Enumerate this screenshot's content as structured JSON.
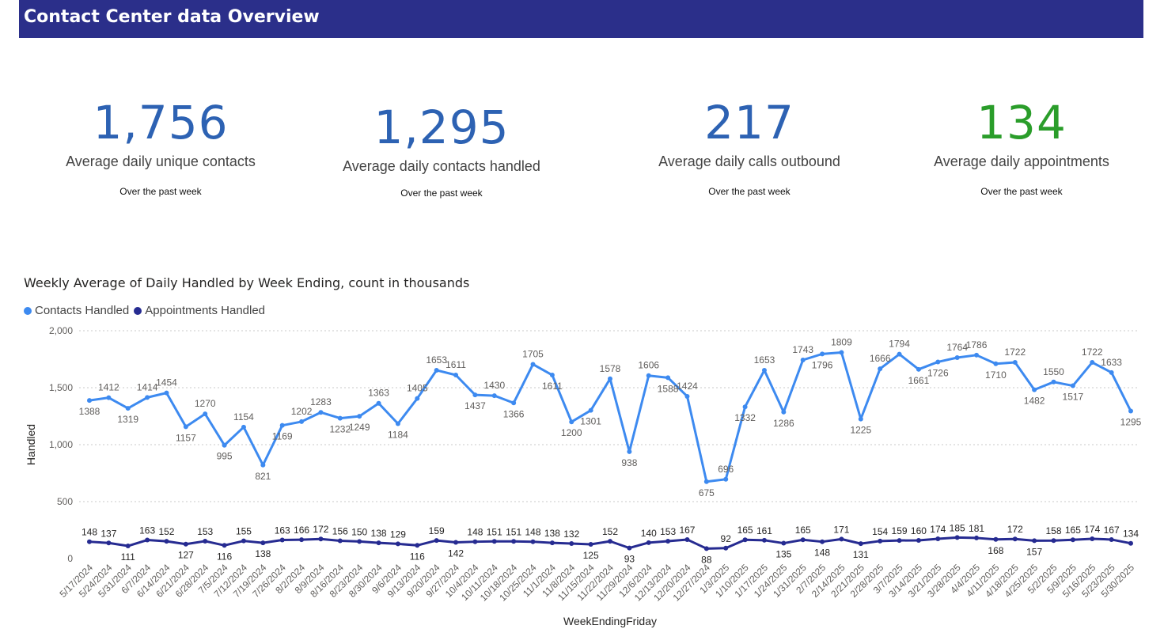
{
  "header": {
    "title": "Contact Center data Overview",
    "color": "#2b2f8a"
  },
  "kpis": [
    {
      "value": "1,756",
      "label": "Average daily unique contacts",
      "sub": "Over the past week",
      "color": "#2d62b3"
    },
    {
      "value": "1,295",
      "label": "Average daily contacts handled",
      "sub": "Over the past week",
      "color": "#2d62b3"
    },
    {
      "value": "217",
      "label": "Average daily calls outbound",
      "sub": "Over the past week",
      "color": "#2d62b3"
    },
    {
      "value": "134",
      "label": "Average daily appointments",
      "sub": "Over the past week",
      "color": "#2a9d2a"
    }
  ],
  "chart_data": {
    "type": "line",
    "title": "Weekly Average of Daily Handled by Week Ending, count in thousands",
    "xlabel": "WeekEndingFriday",
    "ylabel": "Handled",
    "ylim": [
      0,
      2000
    ],
    "yticks": [
      0,
      500,
      1000,
      1500,
      2000
    ],
    "ytick_labels": [
      "0",
      "500",
      "1,000",
      "1,500",
      "2,000"
    ],
    "grid": true,
    "legend": "top-left",
    "x": [
      "5/17/2024",
      "5/24/2024",
      "5/31/2024",
      "6/7/2024",
      "6/14/2024",
      "6/21/2024",
      "6/28/2024",
      "7/5/2024",
      "7/12/2024",
      "7/19/2024",
      "7/26/2024",
      "8/2/2024",
      "8/9/2024",
      "8/16/2024",
      "8/23/2024",
      "8/30/2024",
      "9/6/2024",
      "9/13/2024",
      "9/20/2024",
      "9/27/2024",
      "10/4/2024",
      "10/11/2024",
      "10/18/2024",
      "10/25/2024",
      "11/1/2024",
      "11/8/2024",
      "11/15/2024",
      "11/22/2024",
      "11/29/2024",
      "12/6/2024",
      "12/13/2024",
      "12/20/2024",
      "12/27/2024",
      "1/3/2025",
      "1/10/2025",
      "1/17/2025",
      "1/24/2025",
      "1/31/2025",
      "2/7/2025",
      "2/14/2025",
      "2/21/2025",
      "2/28/2025",
      "3/7/2025",
      "3/14/2025",
      "3/21/2025",
      "3/28/2025",
      "4/4/2025",
      "4/11/2025",
      "4/18/2025",
      "4/25/2025",
      "5/2/2025",
      "5/9/2025",
      "5/16/2025",
      "5/23/2025",
      "5/30/2025"
    ],
    "series": [
      {
        "name": "Contacts Handled",
        "color": "#3d8af0",
        "values": [
          1388,
          1412,
          1319,
          1414,
          1454,
          1157,
          1270,
          995,
          1154,
          821,
          1169,
          1202,
          1283,
          1232,
          1249,
          1363,
          1184,
          1405,
          1653,
          1611,
          1437,
          1430,
          1366,
          1705,
          1611,
          1200,
          1301,
          1578,
          938,
          1606,
          1588,
          1424,
          675,
          696,
          1332,
          1653,
          1286,
          1743,
          1796,
          1809,
          1225,
          1666,
          1794,
          1661,
          1726,
          1764,
          1786,
          1710,
          1722,
          1482,
          1550,
          1517,
          1722,
          1633,
          1295
        ]
      },
      {
        "name": "Appointments Handled",
        "color": "#262b91",
        "values": [
          148,
          137,
          111,
          163,
          152,
          127,
          153,
          116,
          155,
          138,
          163,
          166,
          172,
          156,
          150,
          138,
          129,
          116,
          159,
          142,
          148,
          151,
          151,
          148,
          138,
          132,
          125,
          152,
          93,
          140,
          153,
          167,
          88,
          92,
          165,
          161,
          135,
          165,
          148,
          171,
          131,
          154,
          159,
          160,
          174,
          185,
          181,
          168,
          172,
          157,
          158,
          165,
          174,
          167,
          134
        ]
      }
    ]
  }
}
